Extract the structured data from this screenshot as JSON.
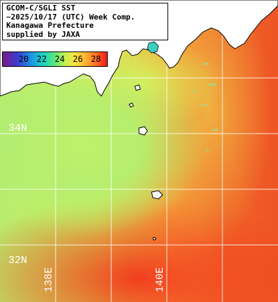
{
  "header": {
    "line1": "GCOM-C/SGLI SST",
    "line2": "~2025/10/17 (UTC) Week Comp.",
    "line3": "Kanagawa Prefecture",
    "line4": "supplied by JAXA"
  },
  "colorbar": {
    "ticks": [
      "20",
      "22",
      "24",
      "26",
      "28"
    ]
  },
  "grid": {
    "latitudes": [
      {
        "label": "34N",
        "value": 34
      },
      {
        "label": "32N",
        "value": 32
      }
    ],
    "longitudes": [
      {
        "label": "138E",
        "value": 138
      },
      {
        "label": "140E",
        "value": 140
      }
    ]
  },
  "colors": {
    "land": "#ffffff",
    "gridline": "#ffffff",
    "cold_water": "#b9ec6e",
    "warm_water": "#f05a28"
  }
}
